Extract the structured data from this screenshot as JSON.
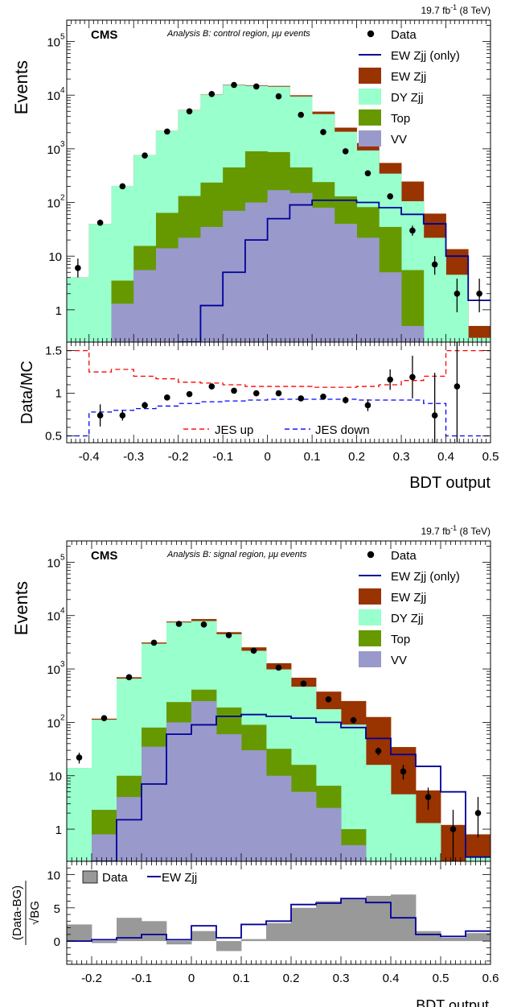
{
  "colors": {
    "DY Zjj": "#99ffcc",
    "EW Zjj": "#993300",
    "Top": "#669900",
    "VV": "#9999cc",
    "EW Zjj line": "#000099",
    "JES up": "#ff0000",
    "JES down": "#0000ff",
    "diff fill": "#999999"
  },
  "chart_data": [
    {
      "type": "bar",
      "panel": "top",
      "lumi": [
        "19.7 fb",
        "-1",
        " (8 TeV)"
      ],
      "cms": "CMS",
      "region": "Analysis B: control region, μμ events",
      "ylabel": "Events",
      "yscale": "log",
      "ylim": [
        0.25,
        250000
      ],
      "xlim": [
        -0.45,
        0.5
      ],
      "bin_edges": [
        -0.45,
        -0.4,
        -0.35,
        -0.3,
        -0.25,
        -0.2,
        -0.15,
        -0.1,
        -0.05,
        0.0,
        0.05,
        0.1,
        0.15,
        0.2,
        0.25,
        0.3,
        0.35,
        0.4,
        0.45,
        0.5
      ],
      "ytick_labels": [
        "10^5",
        "10^4",
        "10^3",
        "10^2",
        "10",
        "1"
      ],
      "series": [
        {
          "name": "VV",
          "values": [
            0,
            0,
            1.3,
            5.5,
            14,
            22,
            35,
            70,
            100,
            170,
            150,
            80,
            40,
            22,
            5,
            0.5,
            0,
            0,
            0
          ]
        },
        {
          "name": "Top",
          "values": [
            0,
            0,
            2.2,
            10,
            50,
            110,
            200,
            380,
            800,
            700,
            300,
            160,
            90,
            60,
            30,
            5,
            0,
            0,
            0
          ]
        },
        {
          "name": "DY Zjj",
          "values": [
            4,
            40,
            200,
            750,
            2100,
            5100,
            10000,
            15000,
            14000,
            13500,
            9000,
            4200,
            1950,
            850,
            310,
            100,
            22,
            4.5,
            0.3
          ]
        },
        {
          "name": "EW Zjj",
          "values": [
            0,
            0,
            0,
            0,
            10,
            40,
            110,
            250,
            400,
            500,
            500,
            500,
            400,
            350,
            200,
            140,
            40,
            9,
            0.2
          ]
        },
        {
          "name": "EW Zjj (only)",
          "values": [
            0,
            0,
            0,
            0,
            0,
            0.25,
            1.2,
            5,
            20,
            50,
            90,
            110,
            110,
            100,
            80,
            60,
            40,
            10,
            1.5
          ]
        }
      ],
      "data_x": [
        -0.425,
        -0.375,
        -0.325,
        -0.275,
        -0.225,
        -0.175,
        -0.125,
        -0.075,
        -0.025,
        0.025,
        0.075,
        0.125,
        0.175,
        0.225,
        0.275,
        0.325,
        0.375,
        0.425,
        0.475
      ],
      "data_y": [
        6,
        42,
        200,
        750,
        2100,
        5000,
        10500,
        15500,
        14500,
        9500,
        4300,
        2050,
        900,
        350,
        130,
        30,
        7,
        2,
        2
      ],
      "data_err": [
        [
          4,
          9
        ],
        [
          37,
          48
        ],
        [
          185,
          215
        ],
        [
          720,
          780
        ],
        [
          2050,
          2150
        ],
        [
          4930,
          5070
        ],
        [
          10400,
          10600
        ],
        [
          15380,
          15620
        ],
        [
          14380,
          14620
        ],
        [
          9400,
          9600
        ],
        [
          4230,
          4370
        ],
        [
          2000,
          2100
        ],
        [
          870,
          930
        ],
        [
          330,
          370
        ],
        [
          120,
          142
        ],
        [
          24,
          37
        ],
        [
          4.5,
          10
        ],
        [
          0.9,
          3.8
        ],
        [
          0.9,
          3.8
        ]
      ],
      "legend": [
        {
          "label": "Data",
          "kind": "marker"
        },
        {
          "label": "EW Zjj (only)",
          "kind": "line"
        },
        {
          "label": "EW Zjj",
          "kind": "box"
        },
        {
          "label": "DY Zjj",
          "kind": "box"
        },
        {
          "label": "Top",
          "kind": "box"
        },
        {
          "label": "VV",
          "kind": "box"
        }
      ]
    },
    {
      "type": "line",
      "panel": "ratio",
      "ylabel": "Data/MC",
      "xlabel": "BDT output",
      "xlim": [
        -0.45,
        0.5
      ],
      "ylim": [
        0.42,
        1.6
      ],
      "xticks": [
        -0.4,
        -0.3,
        -0.2,
        -0.1,
        0,
        0.1,
        0.2,
        0.3,
        0.4,
        0.5
      ],
      "xtick_labels": [
        "-0.4",
        "-0.3",
        "-0.2",
        "-0.1",
        "0",
        "0.1",
        "0.2",
        "0.3",
        "0.4",
        "0.5"
      ],
      "yticks": [
        0.5,
        1,
        1.5
      ],
      "ytick_labels": [
        "0.5",
        "1",
        "1.5"
      ],
      "jes_up": [
        1.5,
        1.25,
        1.28,
        1.2,
        1.17,
        1.13,
        1.12,
        1.1,
        1.08,
        1.08,
        1.08,
        1.07,
        1.07,
        1.08,
        1.1,
        1.15,
        1.2,
        1.5,
        1.5
      ],
      "jes_down": [
        0.5,
        0.78,
        0.8,
        0.82,
        0.85,
        0.88,
        0.9,
        0.91,
        0.92,
        0.93,
        0.93,
        0.93,
        0.93,
        0.92,
        0.92,
        0.92,
        0.88,
        0.5,
        0.5
      ],
      "ratio_x": [
        -0.375,
        -0.325,
        -0.275,
        -0.225,
        -0.175,
        -0.125,
        -0.075,
        -0.025,
        0.025,
        0.075,
        0.125,
        0.175,
        0.225,
        0.275,
        0.325,
        0.375,
        0.425
      ],
      "ratio_y": [
        0.74,
        0.74,
        0.86,
        0.95,
        0.99,
        1.08,
        1.03,
        1.0,
        1.0,
        0.94,
        0.96,
        0.92,
        0.86,
        1.16,
        1.19,
        0.74,
        1.08
      ],
      "ratio_err": [
        0.13,
        0.06,
        0.04,
        0.02,
        0.02,
        0.02,
        0.02,
        0.02,
        0.02,
        0.02,
        0.03,
        0.04,
        0.07,
        0.12,
        0.25,
        0.5,
        0.65
      ],
      "legend": [
        {
          "label": "JES up"
        },
        {
          "label": "JES down"
        }
      ]
    },
    {
      "type": "bar",
      "panel": "top",
      "lumi": [
        "19.7 fb",
        "-1",
        " (8 TeV)"
      ],
      "cms": "CMS",
      "region": "Analysis B: signal region, μμ events",
      "ylabel": "Events",
      "yscale": "log",
      "ylim": [
        0.25,
        250000
      ],
      "xlim": [
        -0.25,
        0.6
      ],
      "bin_edges": [
        -0.25,
        -0.2,
        -0.15,
        -0.1,
        -0.05,
        0.0,
        0.05,
        0.1,
        0.15,
        0.2,
        0.25,
        0.3,
        0.35,
        0.4,
        0.45,
        0.5,
        0.55,
        0.6
      ],
      "ytick_labels": [
        "10^5",
        "10^4",
        "10^3",
        "10^2",
        "10",
        "1"
      ],
      "series": [
        {
          "name": "VV",
          "values": [
            0,
            0.8,
            4,
            35,
            100,
            250,
            60,
            30,
            10,
            5,
            2.5,
            0.5,
            0,
            0,
            0,
            0,
            0
          ]
        },
        {
          "name": "Top",
          "values": [
            0,
            1.5,
            6,
            45,
            140,
            160,
            130,
            60,
            22,
            11,
            4,
            0.5,
            0,
            0,
            0,
            0,
            0
          ]
        },
        {
          "name": "DY Zjj",
          "values": [
            14,
            110,
            650,
            2900,
            7200,
            7500,
            4300,
            2100,
            950,
            450,
            170,
            90,
            16,
            4.5,
            1.3,
            0.2,
            0.3
          ]
        },
        {
          "name": "EW Zjj",
          "values": [
            0,
            5,
            40,
            150,
            300,
            700,
            400,
            350,
            300,
            220,
            200,
            160,
            110,
            30,
            4,
            1,
            0.5
          ]
        },
        {
          "name": "EW Zjj (only)",
          "values": [
            0,
            0.2,
            1.5,
            7,
            60,
            90,
            130,
            140,
            130,
            120,
            100,
            80,
            50,
            25,
            15,
            5,
            0.3
          ]
        }
      ],
      "data_x": [
        -0.225,
        -0.175,
        -0.125,
        -0.075,
        -0.025,
        0.025,
        0.075,
        0.125,
        0.175,
        0.225,
        0.275,
        0.325,
        0.375,
        0.425,
        0.475,
        0.525,
        0.575
      ],
      "data_y": [
        22,
        120,
        700,
        3100,
        7000,
        6800,
        4300,
        2200,
        1060,
        530,
        270,
        110,
        29,
        12,
        4,
        1,
        2
      ],
      "data_err": [
        [
          17,
          27
        ],
        [
          108,
          132
        ],
        [
          670,
          730
        ],
        [
          3040,
          3160
        ],
        [
          6920,
          7080
        ],
        [
          6720,
          6880
        ],
        [
          4230,
          4370
        ],
        [
          2150,
          2250
        ],
        [
          1030,
          1090
        ],
        [
          507,
          553
        ],
        [
          254,
          286
        ],
        [
          100,
          120
        ],
        [
          24,
          34
        ],
        [
          8.5,
          16
        ],
        [
          2.3,
          6
        ],
        [
          0.2,
          2.3
        ],
        [
          0.7,
          4
        ]
      ],
      "legend": [
        {
          "label": "Data",
          "kind": "marker"
        },
        {
          "label": "EW Zjj (only)",
          "kind": "line"
        },
        {
          "label": "EW Zjj",
          "kind": "box"
        },
        {
          "label": "DY Zjj",
          "kind": "box"
        },
        {
          "label": "Top",
          "kind": "box"
        },
        {
          "label": "VV",
          "kind": "box"
        }
      ]
    },
    {
      "type": "bar",
      "panel": "significance",
      "ylabel": "(Data-BG)/√BG",
      "ylabel_parts": [
        "(Data-BG)",
        "√BG"
      ],
      "xlabel": "BDT output",
      "xlim": [
        -0.25,
        0.6
      ],
      "ylim": [
        -3.5,
        12
      ],
      "xticks": [
        -0.2,
        -0.1,
        0,
        0.1,
        0.2,
        0.3,
        0.4,
        0.5,
        0.6
      ],
      "xtick_labels": [
        "-0.2",
        "-0.1",
        "0",
        "0.1",
        "0.2",
        "0.3",
        "0.4",
        "0.5",
        "0.6"
      ],
      "yticks": [
        0,
        5,
        10
      ],
      "ytick_labels": [
        "0",
        "5",
        "10"
      ],
      "series": [
        {
          "name": "Data",
          "values": [
            2.5,
            -0.3,
            3.5,
            3.0,
            -0.5,
            1.5,
            -1.5,
            0.3,
            2.7,
            5.0,
            6.0,
            6.3,
            6.8,
            7.0,
            1.5,
            0.5,
            1.2
          ]
        },
        {
          "name": "EW Zjj",
          "values": [
            0.0,
            0.2,
            0.5,
            1.0,
            0.2,
            2.3,
            0.5,
            2.5,
            3.0,
            5.5,
            5.7,
            6.4,
            5.8,
            3.5,
            1.0,
            0.7,
            1.5
          ]
        }
      ],
      "legend": [
        {
          "label": "Data",
          "kind": "box"
        },
        {
          "label": "EW Zjj",
          "kind": "line"
        }
      ]
    }
  ]
}
